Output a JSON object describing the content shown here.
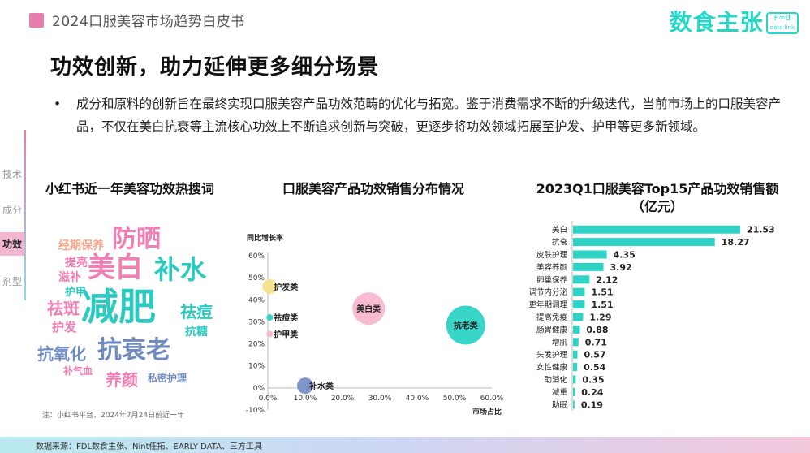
{
  "header": {
    "doc_title": "2024口服美容市场趋势白皮书"
  },
  "brand": {
    "name": "数食主张",
    "mark_top": "F∞d",
    "mark_bottom": "data link"
  },
  "page_title": "功效创新，助力延伸更多细分场景",
  "intro": {
    "bullet": "•",
    "text": "成分和原料的创新旨在最终实现口服美容产品功效范畴的优化与拓宽。鉴于消费需求不断的升级迭代，当前市场上的口服美容产品，不仅在美白抗衰等主流核心功效上不断追求创新与突破，更逐步将功效领域拓展至护发、护甲等更多新领域。"
  },
  "side_nav": [
    {
      "label": "技术",
      "active": false
    },
    {
      "label": "成分",
      "active": false
    },
    {
      "label": "功效",
      "active": true
    },
    {
      "label": "剂型",
      "active": false
    }
  ],
  "colors": {
    "accent": "#25d7c8",
    "pink": "#e77eb0",
    "teal_bar": "#2ed3c6"
  },
  "chart_data": [
    {
      "type": "wordcloud",
      "title": "小红书近一年美容功效热搜词",
      "words": [
        {
          "text": "减肥",
          "color": "#2cc9c0"
        },
        {
          "text": "美白",
          "color": "#f07fb4"
        },
        {
          "text": "补水",
          "color": "#2cc9c0"
        },
        {
          "text": "防晒",
          "color": "#f07fb4"
        },
        {
          "text": "抗衰老",
          "color": "#6f8bbf"
        },
        {
          "text": "祛斑",
          "color": "#f07fb4"
        },
        {
          "text": "祛痘",
          "color": "#2cc9c0"
        },
        {
          "text": "抗氧化",
          "color": "#6f8bbf"
        },
        {
          "text": "养颜",
          "color": "#f07fb4"
        },
        {
          "text": "经期保养",
          "color": "#f5a88c"
        },
        {
          "text": "提亮",
          "color": "#f07fb4"
        },
        {
          "text": "滋补",
          "color": "#f07fb4"
        },
        {
          "text": "护甲",
          "color": "#2cc9c0"
        },
        {
          "text": "护发",
          "color": "#f07fb4"
        },
        {
          "text": "抗糖",
          "color": "#2cc9c0"
        },
        {
          "text": "补气血",
          "color": "#f07fb4"
        },
        {
          "text": "私密护理",
          "color": "#6f8bbf"
        }
      ],
      "note": "注：小红书平台，2024年7月24日前近一年"
    },
    {
      "type": "scatter",
      "title": "口服美容产品功效销售分布情况",
      "xlabel": "市场占比",
      "ylabel": "同比增长率",
      "xlim": [
        0,
        0.6
      ],
      "ylim": [
        -0.1,
        0.6
      ],
      "xticks": [
        "0.0%",
        "10.0%",
        "20.0%",
        "30.0%",
        "40.0%",
        "50.0%",
        "60.0%"
      ],
      "yticks": [
        "60%",
        "50%",
        "40%",
        "30%",
        "20%",
        "10%",
        "0%",
        "-10%"
      ],
      "points": [
        {
          "label": "护发类",
          "x": 0.005,
          "y": 0.46,
          "size": 9,
          "color": "#f6e28a"
        },
        {
          "label": "美白类",
          "x": 0.27,
          "y": 0.36,
          "size": 20,
          "color": "#f7b8cf"
        },
        {
          "label": "抗老类",
          "x": 0.53,
          "y": 0.285,
          "size": 24,
          "color": "#2ed3c6"
        },
        {
          "label": "祛痘类",
          "x": 0.005,
          "y": 0.32,
          "size": 4,
          "color": "#2ed3c6"
        },
        {
          "label": "护甲类",
          "x": 0.005,
          "y": 0.245,
          "size": 4,
          "color": "#f7b8cf"
        },
        {
          "label": "补水类",
          "x": 0.1,
          "y": 0.01,
          "size": 10,
          "color": "#7b8fc7"
        }
      ]
    },
    {
      "type": "bar",
      "title": "2023Q1口服美容Top15产品功效销售额（亿元）",
      "categories": [
        "美白",
        "抗衰",
        "皮肤护理",
        "美容养颜",
        "卵巢保养",
        "调节内分泌",
        "更年期调理",
        "提高免疫",
        "肠胃健康",
        "增肌",
        "头发护理",
        "女性健康",
        "助消化",
        "减重",
        "助眠"
      ],
      "values": [
        21.53,
        18.27,
        4.35,
        3.92,
        2.12,
        1.51,
        1.51,
        1.29,
        0.88,
        0.71,
        0.57,
        0.54,
        0.35,
        0.24,
        0.19
      ],
      "value_labels": [
        "21.53",
        "18.27",
        "4.35",
        "3.92",
        "2.12",
        "1.51",
        "1.51",
        "1.29",
        "0.88",
        "0.71",
        "0.57",
        "0.54",
        "0.35",
        "0.24",
        "0.19"
      ]
    }
  ],
  "footer": {
    "source": "数据来源：FDL数食主张、Nint任拓、EARLY DATA、三方工具"
  }
}
